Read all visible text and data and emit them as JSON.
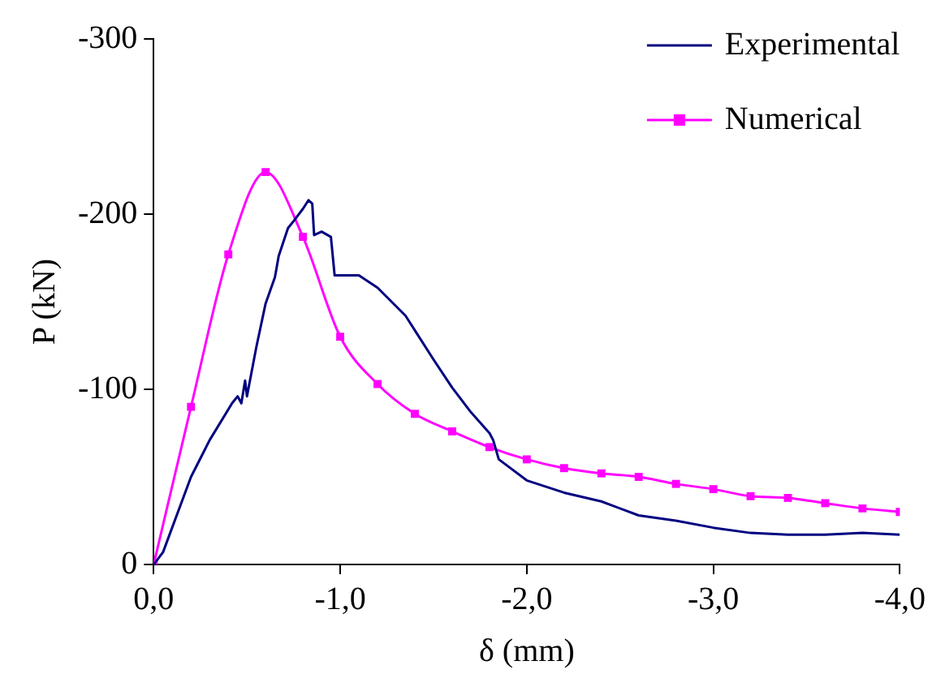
{
  "chart_data": {
    "type": "line",
    "xlabel": "δ (mm)",
    "ylabel": "P (kN)",
    "xlim": [
      0,
      -4
    ],
    "ylim": [
      0,
      -300
    ],
    "xticks": [
      {
        "value": 0,
        "label": "0,0"
      },
      {
        "value": -1,
        "label": "-1,0"
      },
      {
        "value": -2,
        "label": "-2,0"
      },
      {
        "value": -3,
        "label": "-3,0"
      },
      {
        "value": -4,
        "label": "-4,0"
      }
    ],
    "yticks": [
      0,
      -100,
      -200,
      -300
    ],
    "legend": "top right",
    "series": [
      {
        "name": "Experimental",
        "color": "#000080",
        "marker": "none",
        "x": [
          0,
          -0.05,
          -0.2,
          -0.3,
          -0.42,
          -0.45,
          -0.47,
          -0.49,
          -0.5,
          -0.55,
          -0.6,
          -0.65,
          -0.67,
          -0.72,
          -0.75,
          -0.8,
          -0.83,
          -0.85,
          -0.86,
          -0.9,
          -0.95,
          -0.97,
          -1.1,
          -1.2,
          -1.35,
          -1.5,
          -1.6,
          -1.7,
          -1.8,
          -1.82,
          -1.85,
          -2.0,
          -2.2,
          -2.4,
          -2.6,
          -2.8,
          -3.0,
          -3.2,
          -3.4,
          -3.6,
          -3.8,
          -4.0
        ],
        "values": [
          0,
          -7,
          -50,
          -71,
          -92,
          -96,
          -92,
          -105,
          -96,
          -124,
          -149,
          -164,
          -176,
          -192,
          -196,
          -203,
          -208,
          -206,
          -188,
          -190,
          -187,
          -165,
          -165,
          -158,
          -142,
          -117,
          -101,
          -87,
          -75,
          -71,
          -60,
          -48,
          -41,
          -36,
          -28,
          -25,
          -21,
          -18,
          -17,
          -17,
          -18,
          -17
        ]
      },
      {
        "name": "Numerical",
        "color": "#ff00ff",
        "marker": "square",
        "x": [
          0,
          -0.2,
          -0.4,
          -0.6,
          -0.8,
          -1.0,
          -1.2,
          -1.4,
          -1.6,
          -1.8,
          -2.0,
          -2.2,
          -2.4,
          -2.6,
          -2.8,
          -3.0,
          -3.2,
          -3.4,
          -3.6,
          -3.8,
          -4.0
        ],
        "values": [
          0,
          -90,
          -177,
          -224,
          -187,
          -130,
          -103,
          -86,
          -76,
          -67,
          -60,
          -55,
          -52,
          -50,
          -46,
          -43,
          -39,
          -38,
          -35,
          -32,
          -30
        ]
      }
    ]
  }
}
